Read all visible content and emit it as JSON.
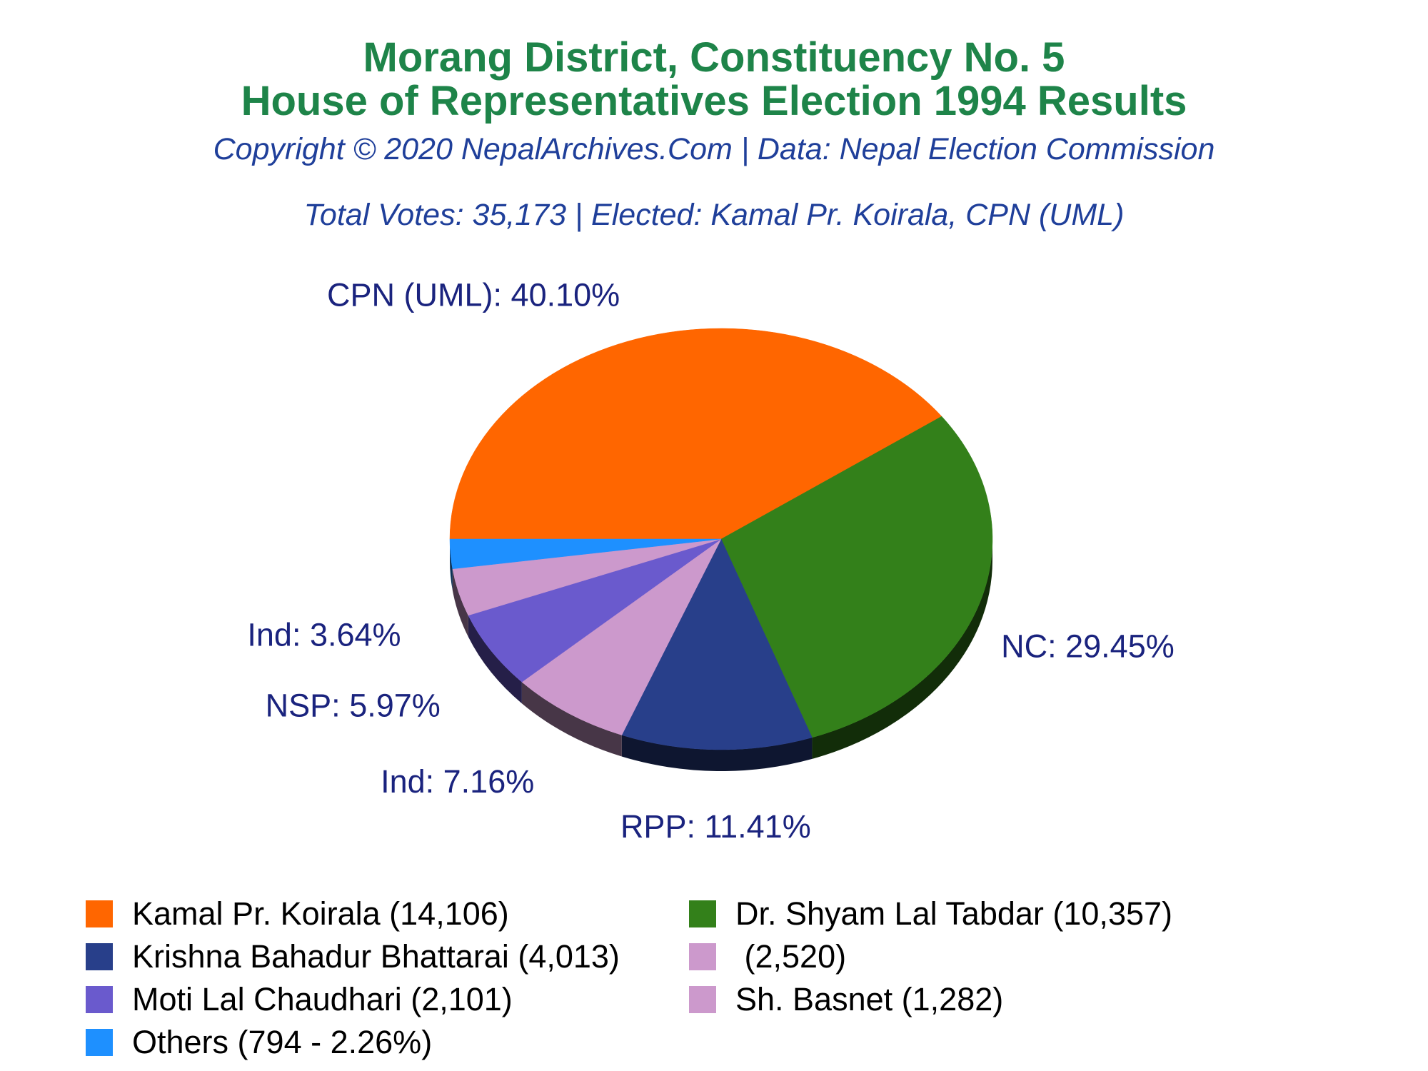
{
  "header": {
    "title_line1": "Morang District, Constituency No. 5",
    "title_line2": "House of Representatives Election 1994 Results",
    "copyright": "Copyright © 2020 NepalArchives.Com | Data: Nepal Election Commission",
    "summary": "Total Votes: 35,173 | Elected: Kamal Pr. Koirala, CPN (UML)"
  },
  "chart_data": {
    "type": "pie",
    "title": "Morang District, Constituency No. 5 House of Representatives Election 1994 Results",
    "slices": [
      {
        "label": "CPN (UML): 40.10%",
        "party": "CPN (UML)",
        "percent": 40.1,
        "votes": 14106,
        "color": "#ff6600"
      },
      {
        "label": "NC: 29.45%",
        "party": "NC",
        "percent": 29.45,
        "votes": 10357,
        "color": "#33801a"
      },
      {
        "label": "RPP: 11.41%",
        "party": "RPP",
        "percent": 11.41,
        "votes": 4013,
        "color": "#283f8a"
      },
      {
        "label": "Ind: 7.16%",
        "party": "Ind",
        "percent": 7.16,
        "votes": 2520,
        "color": "#cc99cc"
      },
      {
        "label": "NSP: 5.97%",
        "party": "NSP",
        "percent": 5.97,
        "votes": 2101,
        "color": "#6a5acd"
      },
      {
        "label": "Ind: 3.64%",
        "party": "Ind",
        "percent": 3.64,
        "votes": 1282,
        "color": "#cc99cc"
      },
      {
        "label": "",
        "party": "Others",
        "percent": 2.26,
        "votes": 794,
        "color": "#1e90ff"
      }
    ],
    "legend": [
      {
        "text": "Kamal Pr. Koirala (14,106)",
        "color": "#ff6600"
      },
      {
        "text": "Dr. Shyam Lal Tabdar (10,357)",
        "color": "#33801a"
      },
      {
        "text": "Krishna Bahadur Bhattarai (4,013)",
        "color": "#283f8a"
      },
      {
        "text": " (2,520)",
        "color": "#cc99cc"
      },
      {
        "text": "Moti Lal Chaudhari (2,101)",
        "color": "#6a5acd"
      },
      {
        "text": "Sh. Basnet (1,282)",
        "color": "#cc99cc"
      },
      {
        "text": "Others (794 - 2.26%)",
        "color": "#1e90ff"
      }
    ],
    "legend_placement": "bottom"
  }
}
